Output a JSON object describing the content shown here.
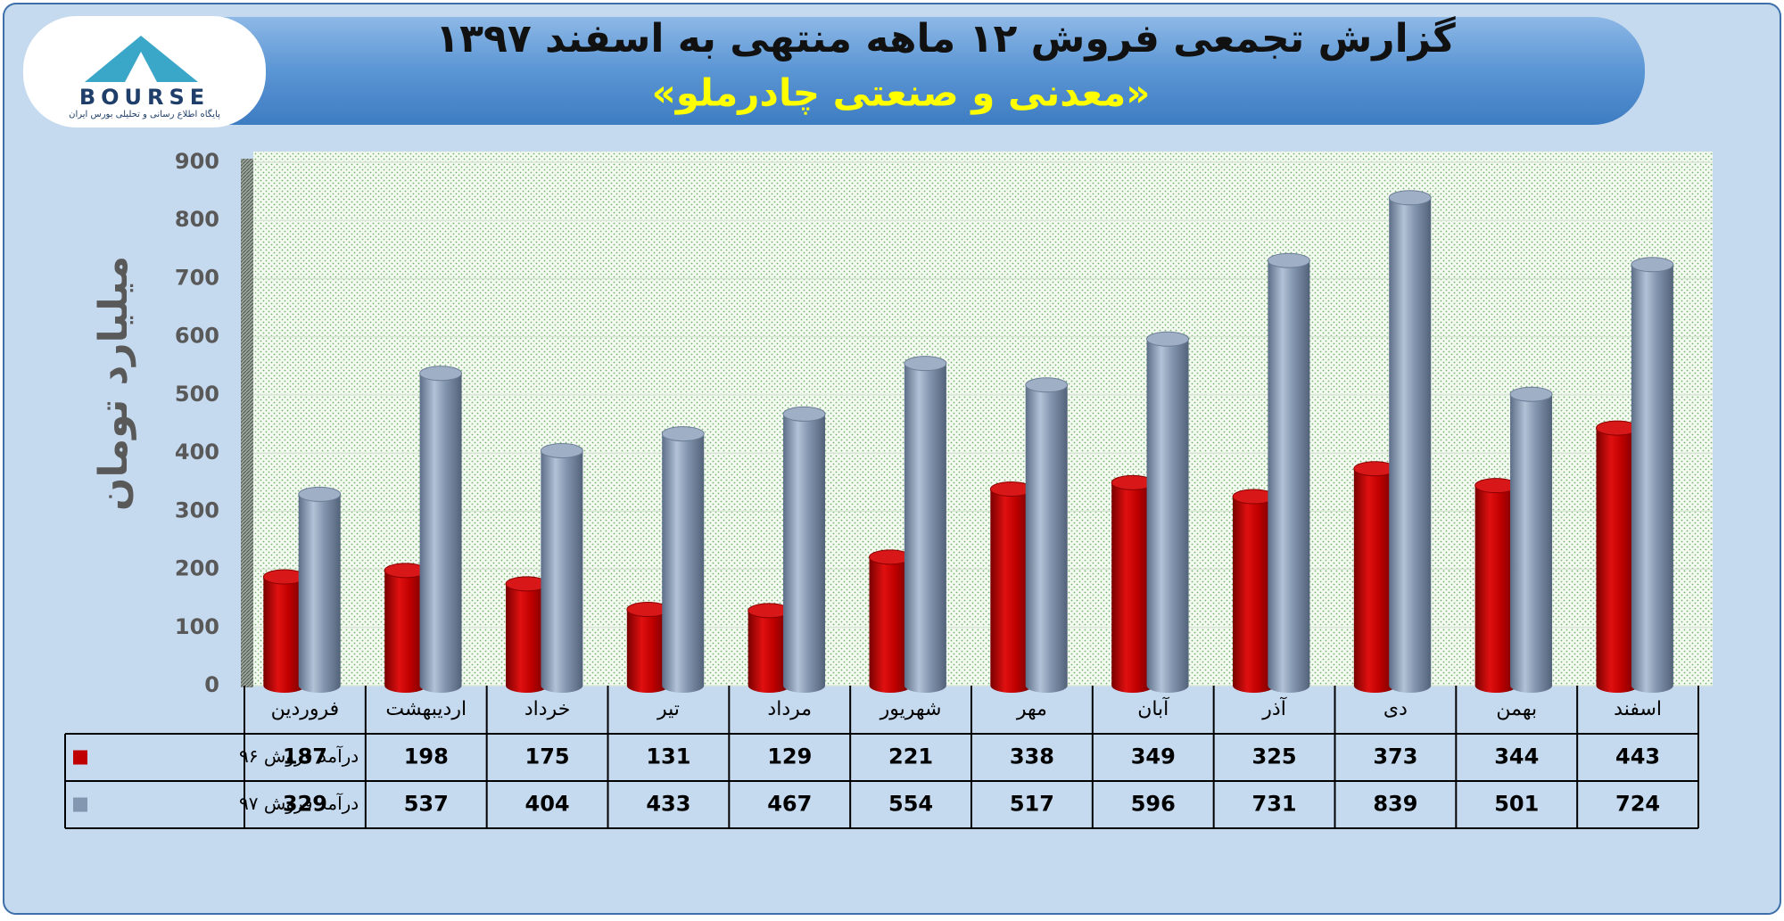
{
  "logo": {
    "text": "BOURSE",
    "tagline": "پایگاه اطلاع رسانی و تحلیلی بورس ایران"
  },
  "chart_data": {
    "type": "bar",
    "title": "گزارش تجمعی فروش ۱۲ ماهه منتهی به اسفند ۱۳۹۷",
    "subtitle": "«معدنی و صنعتی چادرملو»",
    "y_label": "میلیارد تومان",
    "categories": [
      "فروردین",
      "اردیبهشت",
      "خرداد",
      "تیر",
      "مرداد",
      "شهریور",
      "مهر",
      "آبان",
      "آذر",
      "دی",
      "بهمن",
      "اسفند"
    ],
    "series": [
      {
        "name": "درآمد فروش ۹۶",
        "color": "#c00000",
        "values": [
          187,
          198,
          175,
          131,
          129,
          221,
          338,
          349,
          325,
          373,
          344,
          443
        ]
      },
      {
        "name": "درآمد فروش ۹۷",
        "color": "#8497b0",
        "values": [
          329,
          537,
          404,
          433,
          467,
          554,
          517,
          596,
          731,
          839,
          501,
          724
        ]
      }
    ],
    "ylim": [
      0,
      900
    ],
    "yticks": [
      0,
      100,
      200,
      300,
      400,
      500,
      600,
      700,
      800,
      900
    ],
    "grid": true
  }
}
